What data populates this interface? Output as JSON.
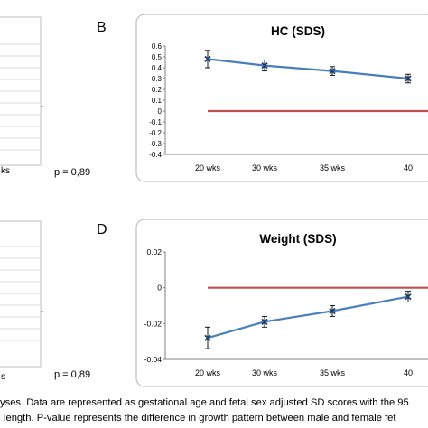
{
  "colors": {
    "series": "#4a7ebb",
    "reference": "#c0504d",
    "error": "#000000",
    "frame": "#bfbfbf"
  },
  "left_panels": {
    "top_pvalue": "p = 0,89",
    "bottom_pvalue": "p = 0,89",
    "top_partial_tick": "ks",
    "bottom_partial_tick": "s"
  },
  "panels": {
    "B": {
      "letter": "B"
    },
    "D": {
      "letter": "D"
    }
  },
  "caption": {
    "line1": "yses. Data are represented as gestational age and fetal sex adjusted SD scores with the 95",
    "line2": "length. P-value represents the difference in growth pattern between male and female fet"
  },
  "chart_data": [
    {
      "id": "B",
      "type": "line",
      "title": "HC (SDS)",
      "categories": [
        "20 wks",
        "30 wks",
        "35 wks",
        "40"
      ],
      "series": [
        {
          "values": [
            0.48,
            0.42,
            0.37,
            0.3
          ],
          "error": [
            0.08,
            0.05,
            0.04,
            0.04
          ],
          "marker": "x"
        }
      ],
      "reference_line": 0,
      "ylim": [
        -0.4,
        0.6
      ],
      "yticks": [
        "0.6",
        "0.5",
        "0.4",
        "0.3",
        "0.2",
        "0.1",
        "0",
        "-0.1",
        "-0.2",
        "-0.3",
        "-0.4"
      ],
      "grid": false,
      "xlabel": "",
      "ylabel": ""
    },
    {
      "id": "D",
      "type": "line",
      "title": "Weight (SDS)",
      "categories": [
        "20 wks",
        "30 wks",
        "35 wks",
        "40"
      ],
      "series": [
        {
          "values": [
            -0.028,
            -0.019,
            -0.013,
            -0.005
          ],
          "error": [
            0.006,
            0.003,
            0.003,
            0.003
          ],
          "marker": "x"
        }
      ],
      "reference_line": 0,
      "ylim": [
        -0.04,
        0.02
      ],
      "yticks": [
        "0.02",
        "0",
        "-0.02",
        "-0.04"
      ],
      "grid": false,
      "xlabel": "",
      "ylabel": ""
    }
  ]
}
